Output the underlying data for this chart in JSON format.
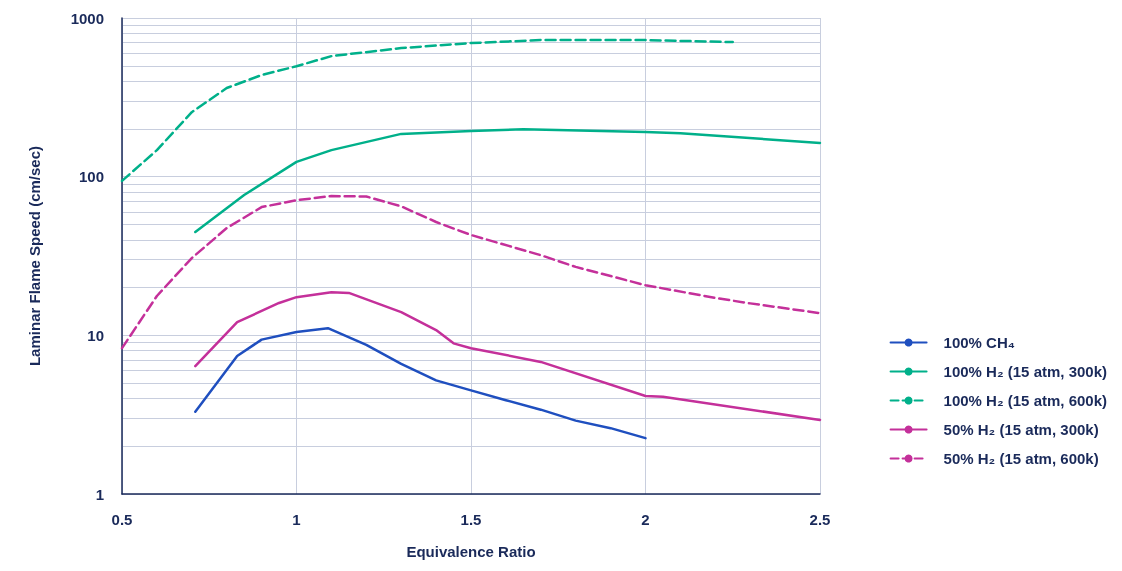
{
  "chart_data": {
    "type": "line",
    "xlabel": "Equivalence Ratio",
    "ylabel": "Laminar Flame Speed (cm/sec)",
    "xlim": [
      0.5,
      2.5
    ],
    "xticks": [
      0.5,
      1,
      1.5,
      2,
      2.5
    ],
    "ylim": [
      1,
      1000
    ],
    "yticks": [
      1,
      10,
      100,
      1000
    ],
    "log": "y",
    "grid": true,
    "legend": "right",
    "marker": "none",
    "series": [
      {
        "name": "100% CH₄",
        "color": "#1f4fbf",
        "line_style": "solid",
        "x": [
          0.71,
          0.83,
          0.9,
          1.0,
          1.09,
          1.2,
          1.3,
          1.4,
          1.5,
          1.6,
          1.7,
          1.8,
          1.9,
          2.0
        ],
        "values": [
          3.3,
          7.4,
          9.4,
          10.5,
          11.1,
          8.7,
          6.6,
          5.2,
          4.5,
          3.9,
          3.4,
          2.9,
          2.6,
          2.25
        ]
      },
      {
        "name": "100% H₂ (15 atm, 300k)",
        "color": "#00b08a",
        "line_style": "solid",
        "x": [
          0.71,
          0.85,
          1.0,
          1.1,
          1.3,
          1.5,
          1.65,
          2.0,
          2.1,
          2.5
        ],
        "values": [
          44.8,
          76.6,
          124,
          147,
          186,
          194,
          199,
          191,
          188,
          163
        ]
      },
      {
        "name": "100% H₂ (15 atm, 600k)",
        "color": "#00b08a",
        "line_style": "dashed",
        "x": [
          0.5,
          0.6,
          0.7,
          0.8,
          0.9,
          1.0,
          1.1,
          1.3,
          1.5,
          1.7,
          2.0,
          2.25
        ],
        "values": [
          94,
          147,
          255,
          362,
          437,
          497,
          575,
          646,
          695,
          726,
          726,
          705
        ]
      },
      {
        "name": "50% H₂ (15 atm, 300k)",
        "color": "#c4309a",
        "line_style": "solid",
        "x": [
          0.71,
          0.83,
          0.95,
          1.0,
          1.1,
          1.15,
          1.3,
          1.4,
          1.45,
          1.5,
          1.7,
          2.0,
          2.05,
          2.5
        ],
        "values": [
          6.4,
          12.1,
          16,
          17.4,
          18.7,
          18.5,
          14,
          10.8,
          8.9,
          8.3,
          6.8,
          4.15,
          4.1,
          2.93
        ]
      },
      {
        "name": "50% H₂ (15 atm, 600k)",
        "color": "#c4309a",
        "line_style": "dashed",
        "x": [
          0.5,
          0.6,
          0.7,
          0.8,
          0.9,
          1.0,
          1.1,
          1.2,
          1.3,
          1.4,
          1.5,
          1.7,
          1.8,
          2.0,
          2.2,
          2.3,
          2.5
        ],
        "values": [
          8.3,
          17.7,
          30.7,
          47.4,
          64.3,
          71,
          75.5,
          75,
          65,
          51.8,
          42.9,
          32,
          27,
          20.7,
          17.2,
          15.9,
          13.8
        ]
      }
    ]
  }
}
